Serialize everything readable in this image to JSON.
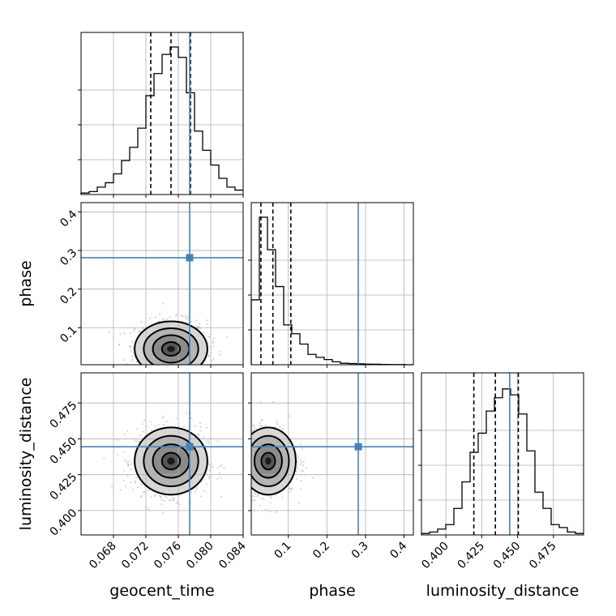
{
  "chart_data": {
    "type": "corner",
    "parameters": [
      "geocent_time",
      "phase",
      "luminosity_distance"
    ],
    "truths": {
      "geocent_time": 0.0774,
      "phase": 0.2813,
      "luminosity_distance": 0.4445
    },
    "truth_color": "#4682b4",
    "quantiles": {
      "geocent_time": [
        0.0726,
        0.0751,
        0.0775
      ],
      "phase": [
        0.029,
        0.06,
        0.1065
      ],
      "luminosity_distance": [
        0.4195,
        0.4345,
        0.4505
      ]
    },
    "ranges": {
      "geocent_time": [
        0.064,
        0.084
      ],
      "phase": [
        0.004,
        0.424
      ],
      "luminosity_distance": [
        0.383,
        0.496
      ]
    },
    "ticks": {
      "geocent_time": [
        "0.068",
        "0.072",
        "0.076",
        "0.080",
        "0.084"
      ],
      "phase": [
        "0.1",
        "0.2",
        "0.3",
        "0.4"
      ],
      "luminosity_distance": [
        "0.400",
        "0.425",
        "0.450",
        "0.475"
      ]
    },
    "histograms": {
      "geocent_time": [
        0.01,
        0.02,
        0.05,
        0.08,
        0.14,
        0.23,
        0.32,
        0.45,
        0.67,
        0.82,
        0.95,
        1.0,
        0.93,
        0.69,
        0.43,
        0.3,
        0.2,
        0.11,
        0.05,
        0.03
      ],
      "phase": [
        0.44,
        1.0,
        0.78,
        0.53,
        0.27,
        0.21,
        0.14,
        0.07,
        0.05,
        0.035,
        0.02,
        0.01,
        0.008,
        0.006,
        0.004,
        0.003,
        0.002,
        0.0015,
        0.001,
        0.0
      ],
      "luminosity_distance": [
        0.01,
        0.02,
        0.04,
        0.07,
        0.18,
        0.36,
        0.56,
        0.69,
        0.84,
        0.93,
        0.99,
        0.95,
        0.82,
        0.57,
        0.29,
        0.18,
        0.07,
        0.05,
        0.02,
        0.01
      ]
    },
    "grid": true
  }
}
